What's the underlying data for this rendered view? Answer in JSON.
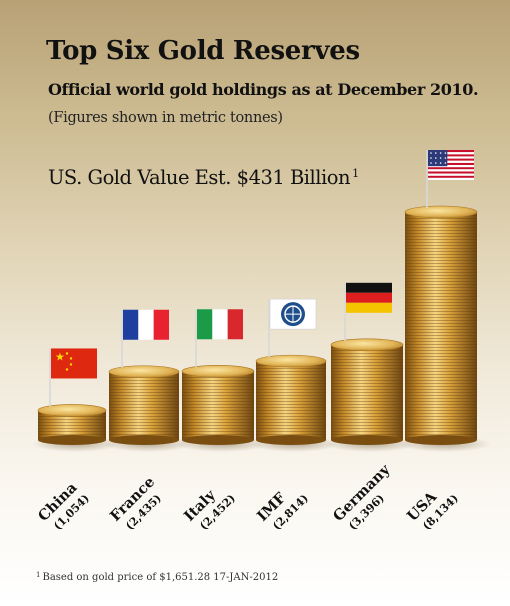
{
  "header": {
    "title": "Top Six Gold Reserves",
    "subtitle": "Official world gold holdings as at December 2010.",
    "units_note": "(Figures shown in metric tonnes)",
    "value_estimate": "US. Gold Value Est. $431 Billion",
    "value_estimate_ref": "1"
  },
  "footnote": {
    "ref": "1",
    "text": "Based on gold price of $1,651.28 17-JAN-2012"
  },
  "chart_data": {
    "type": "bar",
    "categories": [
      "China",
      "France",
      "Italy",
      "IMF",
      "Germany",
      "USA"
    ],
    "value_labels": [
      "(1,054)",
      "(2,435)",
      "(2,452)",
      "(2,814)",
      "(3,396)",
      "(8,134)"
    ],
    "values": [
      1054,
      2435,
      2452,
      2814,
      3396,
      8134
    ],
    "flags": [
      "china-flag-icon",
      "france-flag-icon",
      "italy-flag-icon",
      "imf-logo-icon",
      "germany-flag-icon",
      "usa-flag-icon"
    ],
    "colors": {
      "gold_light": "#f3d27a",
      "gold_mid": "#d9a53c",
      "gold_dark": "#8a5a12"
    }
  }
}
